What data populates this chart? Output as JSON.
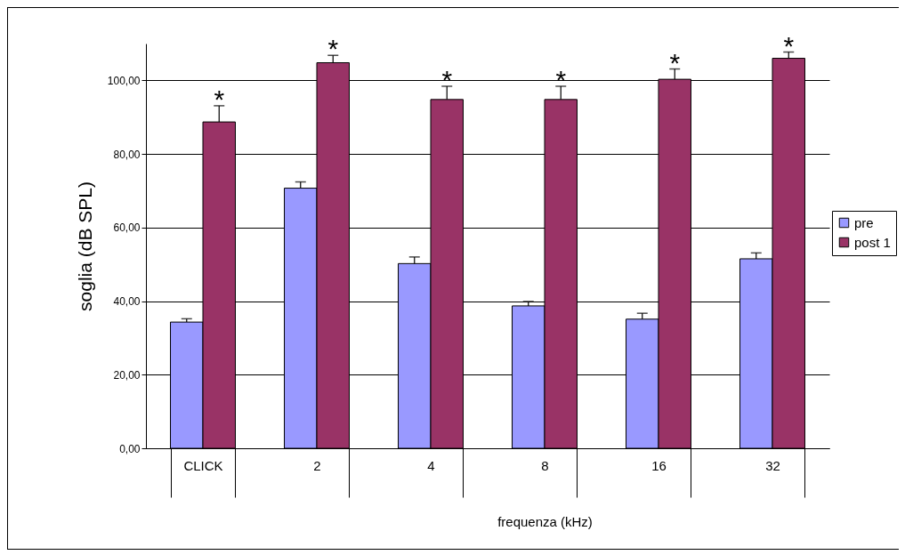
{
  "chart_data": {
    "type": "bar",
    "ylabel": "soglia (dB SPL)",
    "xlabel": "frequenza (kHz)",
    "categories": [
      "CLICK",
      "2",
      "4",
      "8",
      "16",
      "32"
    ],
    "series": [
      {
        "name": "pre",
        "color": "#9999ff",
        "values": [
          34.3,
          70.7,
          50.2,
          38.7,
          35.1,
          51.5
        ],
        "errors": [
          [
            34.3,
            35.2
          ],
          [
            70.7,
            72.4
          ],
          [
            50.2,
            52.0
          ],
          [
            38.7,
            39.9
          ],
          [
            35.1,
            36.7
          ],
          [
            51.5,
            53.1
          ]
        ]
      },
      {
        "name": "post 1",
        "color": "#993366",
        "values": [
          88.7,
          104.8,
          94.8,
          94.8,
          100.3,
          106.0
        ],
        "errors": [
          [
            88.7,
            93.1
          ],
          [
            104.8,
            106.8
          ],
          [
            94.8,
            98.4
          ],
          [
            94.8,
            98.4
          ],
          [
            100.3,
            103.1
          ],
          [
            106.0,
            107.7
          ]
        ]
      }
    ],
    "ylim": [
      0,
      110
    ],
    "yticks": [
      {
        "value": 0,
        "label": "0,00"
      },
      {
        "value": 20,
        "label": "20,00"
      },
      {
        "value": 40,
        "label": "40,00"
      },
      {
        "value": 60,
        "label": "60,00"
      },
      {
        "value": 80,
        "label": "80,00"
      },
      {
        "value": 100,
        "label": "100,00"
      }
    ],
    "grid": "y",
    "legend": "right",
    "annotations": [
      "*",
      "*",
      "*",
      "*",
      "*",
      "*"
    ]
  }
}
